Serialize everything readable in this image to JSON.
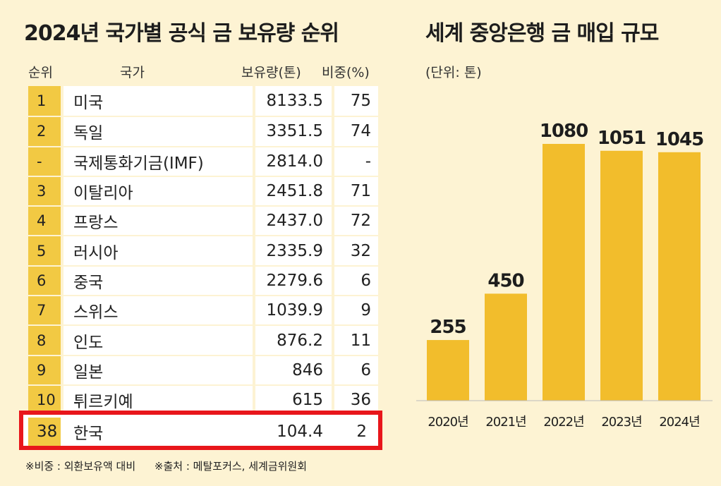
{
  "left_title": "2024년 국가별 공식 금 보유량 순위",
  "right_title": "세계 중앙은행 금 매입 규모",
  "unit": "(단위: 톤)",
  "table": {
    "headers": {
      "rank": "순위",
      "country": "국가",
      "amount": "보유량(톤)",
      "share": "비중(%)"
    },
    "rows": [
      {
        "rank": "1",
        "country": "미국",
        "amount": "8133.5",
        "share": "75"
      },
      {
        "rank": "2",
        "country": "독일",
        "amount": "3351.5",
        "share": "74"
      },
      {
        "rank": "-",
        "country": "국제통화기금(IMF)",
        "amount": "2814.0",
        "share": "-"
      },
      {
        "rank": "3",
        "country": "이탈리아",
        "amount": "2451.8",
        "share": "71"
      },
      {
        "rank": "4",
        "country": "프랑스",
        "amount": "2437.0",
        "share": "72"
      },
      {
        "rank": "5",
        "country": "러시아",
        "amount": "2335.9",
        "share": "32"
      },
      {
        "rank": "6",
        "country": "중국",
        "amount": "2279.6",
        "share": "6"
      },
      {
        "rank": "7",
        "country": "스위스",
        "amount": "1039.9",
        "share": "9"
      },
      {
        "rank": "8",
        "country": "인도",
        "amount": "876.2",
        "share": "11"
      },
      {
        "rank": "9",
        "country": "일본",
        "amount": "846",
        "share": "6"
      },
      {
        "rank": "10",
        "country": "튀르키예",
        "amount": "615",
        "share": "36"
      }
    ],
    "highlight_row": {
      "rank": "38",
      "country": "한국",
      "amount": "104.4",
      "share": "2"
    }
  },
  "footnotes": {
    "share_note": "※비중 : 외환보유액 대비",
    "source": "※출처 : 메탈포커스, 세계금위원회"
  },
  "colors": {
    "bar": "#f2bd2c",
    "rank_cell": "#f2c943",
    "highlight_border": "#e8161b",
    "background": "#fdf3d3"
  },
  "chart_data": {
    "type": "bar",
    "title": "세계 중앙은행 금 매입 규모",
    "unit": "(단위: 톤)",
    "categories": [
      "2020년",
      "2021년",
      "2022년",
      "2023년",
      "2024년"
    ],
    "values": [
      255,
      450,
      1080,
      1051,
      1045
    ],
    "ylim": [
      0,
      1080
    ],
    "grid": false,
    "legend": "none"
  }
}
